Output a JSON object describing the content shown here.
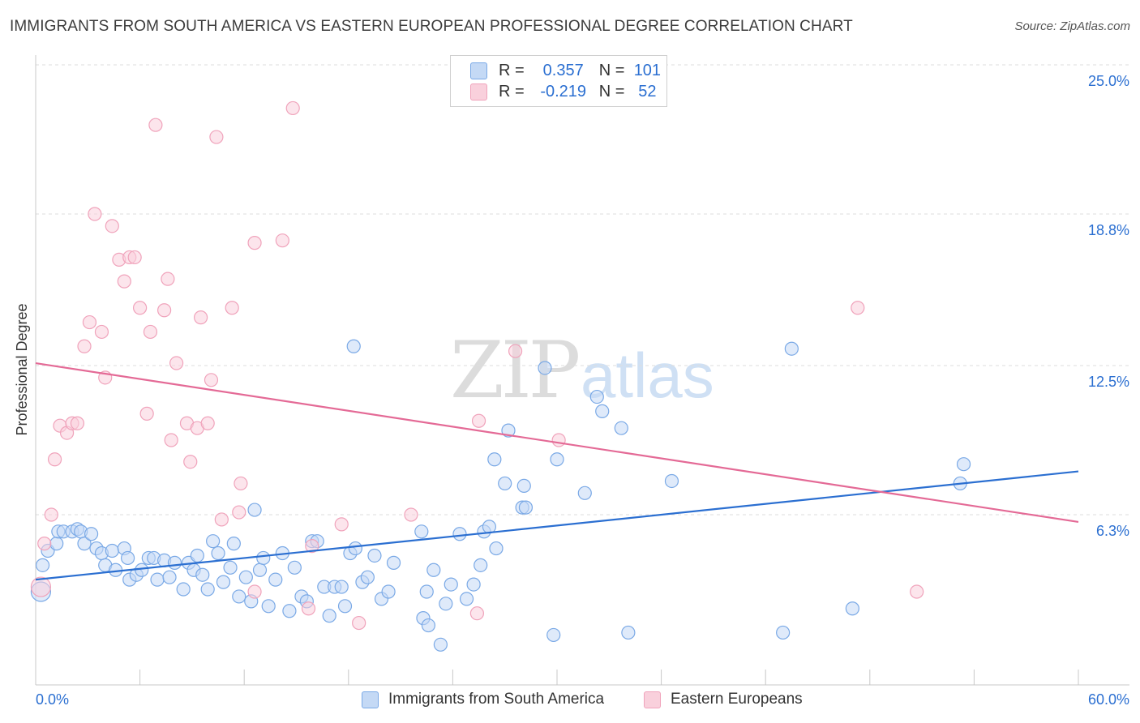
{
  "title": "IMMIGRANTS FROM SOUTH AMERICA VS EASTERN EUROPEAN PROFESSIONAL DEGREE CORRELATION CHART",
  "source": "Source: ZipAtlas.com",
  "watermark": {
    "zip": "ZIP",
    "atlas": "atlas"
  },
  "legend": {
    "rows": [
      {
        "r_label": "R =",
        "r_value": "0.357",
        "n_label": "N =",
        "n_value": "101",
        "color": "#7aa9e6",
        "fill": "#c4d9f5"
      },
      {
        "r_label": "R =",
        "r_value": "-0.219",
        "n_label": "N =",
        "n_value": "52",
        "color": "#f0a3bb",
        "fill": "#f9d0dc"
      }
    ]
  },
  "chart_data": {
    "type": "scatter",
    "ylabel": "Professional Degree",
    "xlim": [
      0,
      60
    ],
    "ylim": [
      0,
      25
    ],
    "x_tick_labels": [
      "0.0%",
      "60.0%"
    ],
    "y_ticks": [
      {
        "value": 6.3,
        "label": "6.3%"
      },
      {
        "value": 12.5,
        "label": "12.5%"
      },
      {
        "value": 18.8,
        "label": "18.8%"
      },
      {
        "value": 25.0,
        "label": "25.0%"
      }
    ],
    "series": [
      {
        "name": "Immigrants from South America",
        "color": "#7aa9e6",
        "fill": "#c4d9f5",
        "line_color": "#2b6fd1",
        "trend": [
          [
            0,
            3.6
          ],
          [
            60,
            8.1
          ]
        ],
        "points": [
          [
            0.3,
            3.1
          ],
          [
            0.4,
            4.2
          ],
          [
            0.7,
            4.8
          ],
          [
            1.2,
            5.1
          ],
          [
            1.3,
            5.6
          ],
          [
            1.6,
            5.6
          ],
          [
            2.1,
            5.6
          ],
          [
            2.4,
            5.7
          ],
          [
            2.6,
            5.6
          ],
          [
            2.8,
            5.1
          ],
          [
            3.2,
            5.5
          ],
          [
            3.5,
            4.9
          ],
          [
            3.8,
            4.7
          ],
          [
            4.0,
            4.2
          ],
          [
            4.4,
            4.8
          ],
          [
            4.6,
            4.0
          ],
          [
            5.1,
            4.9
          ],
          [
            5.3,
            4.5
          ],
          [
            5.4,
            3.6
          ],
          [
            5.8,
            3.8
          ],
          [
            6.1,
            4.0
          ],
          [
            6.5,
            4.5
          ],
          [
            6.8,
            4.5
          ],
          [
            7.0,
            3.6
          ],
          [
            7.4,
            4.4
          ],
          [
            7.7,
            3.7
          ],
          [
            8.0,
            4.3
          ],
          [
            8.5,
            3.2
          ],
          [
            8.8,
            4.3
          ],
          [
            9.1,
            4.0
          ],
          [
            9.3,
            4.6
          ],
          [
            9.6,
            3.8
          ],
          [
            9.9,
            3.2
          ],
          [
            10.2,
            5.2
          ],
          [
            10.5,
            4.7
          ],
          [
            10.8,
            3.5
          ],
          [
            11.2,
            4.1
          ],
          [
            11.4,
            5.1
          ],
          [
            11.7,
            2.9
          ],
          [
            12.1,
            3.7
          ],
          [
            12.4,
            2.7
          ],
          [
            12.6,
            6.5
          ],
          [
            12.9,
            4.0
          ],
          [
            13.1,
            4.5
          ],
          [
            13.4,
            2.5
          ],
          [
            13.8,
            3.6
          ],
          [
            14.2,
            4.7
          ],
          [
            14.6,
            2.3
          ],
          [
            14.9,
            4.1
          ],
          [
            15.3,
            2.9
          ],
          [
            15.6,
            2.7
          ],
          [
            15.9,
            5.2
          ],
          [
            16.2,
            5.2
          ],
          [
            16.6,
            3.3
          ],
          [
            16.9,
            2.1
          ],
          [
            17.2,
            3.3
          ],
          [
            17.6,
            3.3
          ],
          [
            17.8,
            2.5
          ],
          [
            18.1,
            4.7
          ],
          [
            18.4,
            4.9
          ],
          [
            18.8,
            3.5
          ],
          [
            19.1,
            3.7
          ],
          [
            19.5,
            4.6
          ],
          [
            19.9,
            2.8
          ],
          [
            20.3,
            3.1
          ],
          [
            20.6,
            4.3
          ],
          [
            18.3,
            13.3
          ],
          [
            22.3,
            2.0
          ],
          [
            22.6,
            1.7
          ],
          [
            22.5,
            3.1
          ],
          [
            22.2,
            5.6
          ],
          [
            22.9,
            4.0
          ],
          [
            23.3,
            0.9
          ],
          [
            23.6,
            2.6
          ],
          [
            23.9,
            3.4
          ],
          [
            24.4,
            5.5
          ],
          [
            24.8,
            2.8
          ],
          [
            25.2,
            3.4
          ],
          [
            25.6,
            4.2
          ],
          [
            25.8,
            5.6
          ],
          [
            26.1,
            5.8
          ],
          [
            26.5,
            4.9
          ],
          [
            26.4,
            8.6
          ],
          [
            27.2,
            9.8
          ],
          [
            27.0,
            7.6
          ],
          [
            28.0,
            6.6
          ],
          [
            28.1,
            7.5
          ],
          [
            28.2,
            6.6
          ],
          [
            29.3,
            12.4
          ],
          [
            29.8,
            1.3
          ],
          [
            30.0,
            8.6
          ],
          [
            31.6,
            7.2
          ],
          [
            32.3,
            11.2
          ],
          [
            32.6,
            10.6
          ],
          [
            33.7,
            9.9
          ],
          [
            34.1,
            1.4
          ],
          [
            36.6,
            7.7
          ],
          [
            43.0,
            1.4
          ],
          [
            43.5,
            13.2
          ],
          [
            47.0,
            2.4
          ],
          [
            53.2,
            7.6
          ],
          [
            53.4,
            8.4
          ]
        ]
      },
      {
        "name": "Eastern Europeans",
        "color": "#f0a3bb",
        "fill": "#f9d0dc",
        "line_color": "#e46a96",
        "trend": [
          [
            0,
            12.6
          ],
          [
            60,
            6.0
          ]
        ],
        "points": [
          [
            0.3,
            3.3
          ],
          [
            0.5,
            5.1
          ],
          [
            0.9,
            6.3
          ],
          [
            1.1,
            8.6
          ],
          [
            1.4,
            10.0
          ],
          [
            1.8,
            9.7
          ],
          [
            2.1,
            10.1
          ],
          [
            2.4,
            10.1
          ],
          [
            2.8,
            13.3
          ],
          [
            3.1,
            14.3
          ],
          [
            3.4,
            18.8
          ],
          [
            3.8,
            13.9
          ],
          [
            4.0,
            12.0
          ],
          [
            4.4,
            18.3
          ],
          [
            4.8,
            16.9
          ],
          [
            5.1,
            16.0
          ],
          [
            5.4,
            17.0
          ],
          [
            5.7,
            17.0
          ],
          [
            6.0,
            14.9
          ],
          [
            6.4,
            10.5
          ],
          [
            6.6,
            13.9
          ],
          [
            6.9,
            22.5
          ],
          [
            7.4,
            14.8
          ],
          [
            7.6,
            16.1
          ],
          [
            7.8,
            9.4
          ],
          [
            8.1,
            12.6
          ],
          [
            8.7,
            10.1
          ],
          [
            8.9,
            8.5
          ],
          [
            9.3,
            9.9
          ],
          [
            9.5,
            14.5
          ],
          [
            9.9,
            10.1
          ],
          [
            10.1,
            11.9
          ],
          [
            10.4,
            22.0
          ],
          [
            10.7,
            6.1
          ],
          [
            11.3,
            14.9
          ],
          [
            11.7,
            6.4
          ],
          [
            11.8,
            7.6
          ],
          [
            12.6,
            3.1
          ],
          [
            12.6,
            17.6
          ],
          [
            14.2,
            17.7
          ],
          [
            14.8,
            23.2
          ],
          [
            15.7,
            2.4
          ],
          [
            15.9,
            5.0
          ],
          [
            17.6,
            5.9
          ],
          [
            18.6,
            1.8
          ],
          [
            21.6,
            6.3
          ],
          [
            25.5,
            10.2
          ],
          [
            25.4,
            2.2
          ],
          [
            27.6,
            13.1
          ],
          [
            30.1,
            9.4
          ],
          [
            47.3,
            14.9
          ],
          [
            50.7,
            3.1
          ]
        ]
      }
    ]
  }
}
